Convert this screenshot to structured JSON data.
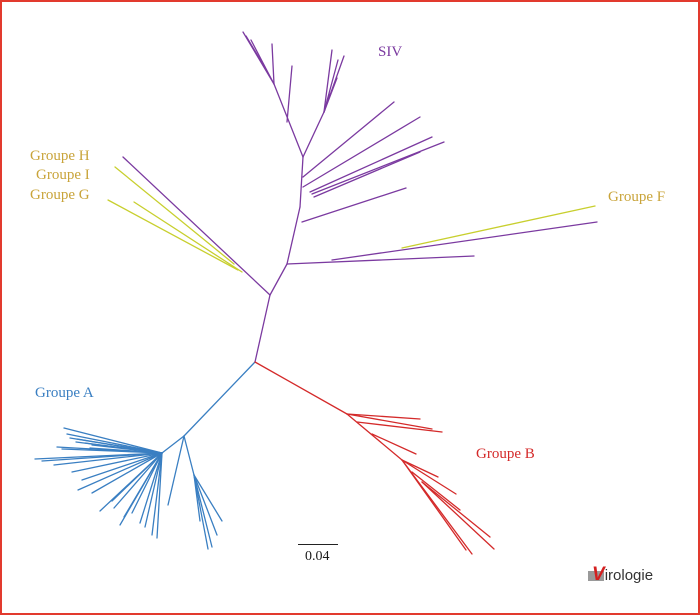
{
  "labels": {
    "siv": "SIV",
    "groupe_h": "Groupe H",
    "groupe_i": "Groupe I",
    "groupe_g": "Groupe G",
    "groupe_f": "Groupe F",
    "groupe_a": "Groupe A",
    "groupe_b": "Groupe B"
  },
  "scale_bar": {
    "value": "0.04"
  },
  "logo": {
    "initial": "V",
    "rest": "irologie"
  },
  "colors": {
    "siv": "#7b3aa0",
    "groupe_hig": "#c9a43a",
    "groupe_f": "#c9a43a",
    "groupe_a": "#3a7fc2",
    "groupe_b": "#d42a2a",
    "hig_branches": "#c8cf2e",
    "frame": "#e23a2e"
  }
}
